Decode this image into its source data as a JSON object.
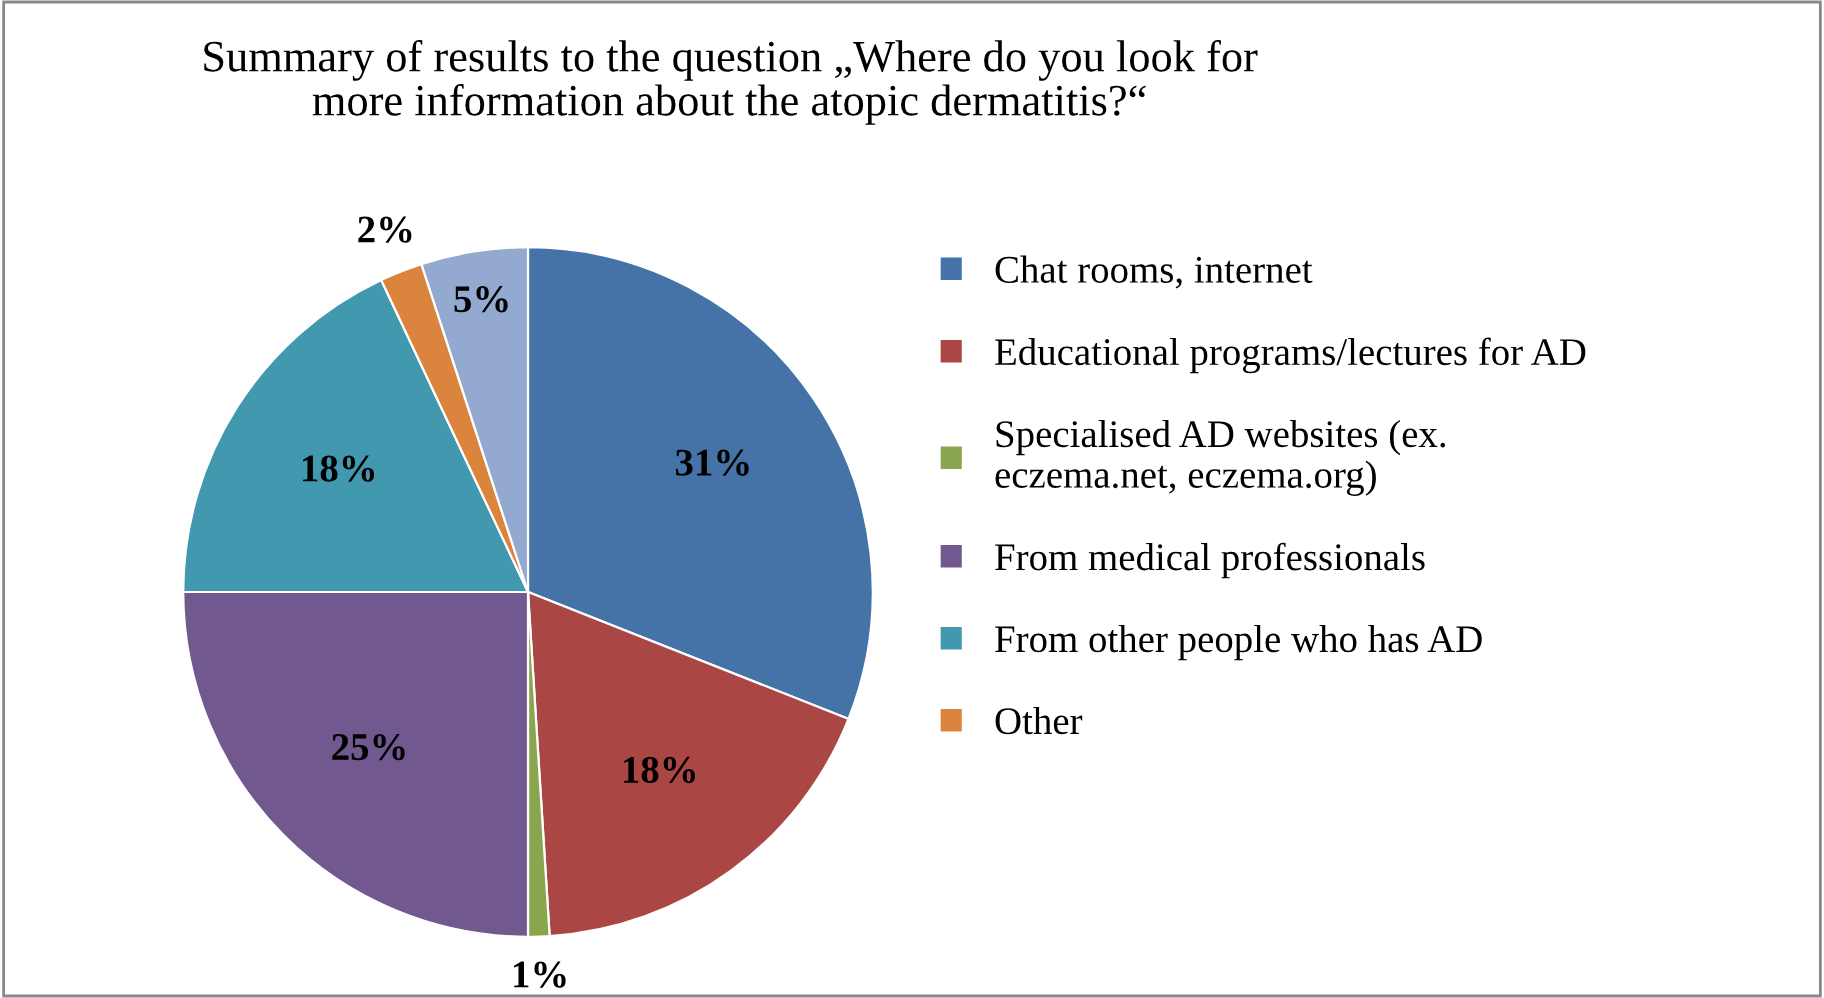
{
  "chart_data": {
    "type": "pie",
    "title": "Summary of results to the question „Where do you look for\nmore information about the atopic dermatitis?“",
    "categories": [
      "Chat rooms, internet",
      "Educational programs/lectures for AD",
      "Specialised AD websites (ex.\neczema.net, eczema.org)",
      "From medical professionals",
      "From other people who has AD",
      "Other",
      null
    ],
    "values": [
      31,
      18,
      1,
      25,
      18,
      2,
      5
    ],
    "colors": [
      "#4572a7",
      "#aa4643",
      "#89a54e",
      "#71588f",
      "#4198af",
      "#db843d",
      "#93a9cf"
    ],
    "value_labels": [
      "31%",
      "18%",
      "1%",
      "25%",
      "18%",
      "2%",
      "5%"
    ],
    "legend": "right"
  }
}
